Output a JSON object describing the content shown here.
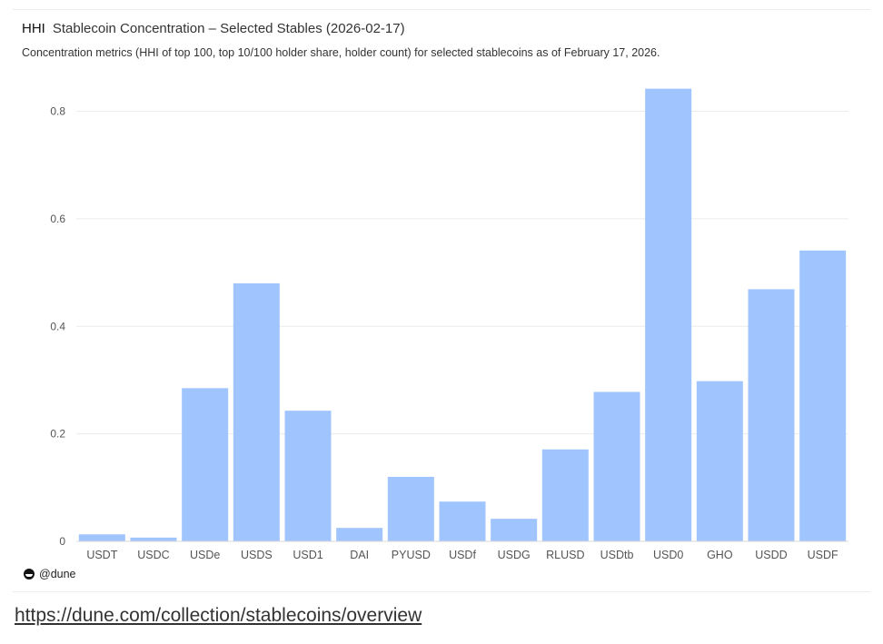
{
  "header": {
    "kind": "HHI",
    "title": "Stablecoin Concentration – Selected Stables (2026-02-17)",
    "subtitle": "Concentration metrics (HHI of top 100, top 10/100 holder share, holder count) for selected stablecoins as of February 17, 2026."
  },
  "brand": {
    "label": "@dune"
  },
  "footer": {
    "link_text": "https://dune.com/collection/stablecoins/overview"
  },
  "colors": {
    "bar": "#a0c4fd",
    "grid": "#ececec",
    "axis_text": "#555555"
  },
  "chart_data": {
    "type": "bar",
    "title": "HHI",
    "categories": [
      "USDT",
      "USDC",
      "USDe",
      "USDS",
      "USD1",
      "DAI",
      "PYUSD",
      "USDf",
      "USDG",
      "RLUSD",
      "USDtb",
      "USD0",
      "GHO",
      "USDD",
      "USDF"
    ],
    "values": [
      0.013,
      0.007,
      0.285,
      0.48,
      0.243,
      0.025,
      0.12,
      0.074,
      0.042,
      0.171,
      0.278,
      0.842,
      0.298,
      0.469,
      0.541
    ],
    "yticks": [
      0,
      0.2,
      0.4,
      0.6,
      0.8
    ],
    "ytick_labels": [
      "0",
      "0.2",
      "0.4",
      "0.6",
      "0.8"
    ],
    "ylim": [
      0,
      0.86
    ],
    "grid": true,
    "legend": "none"
  }
}
